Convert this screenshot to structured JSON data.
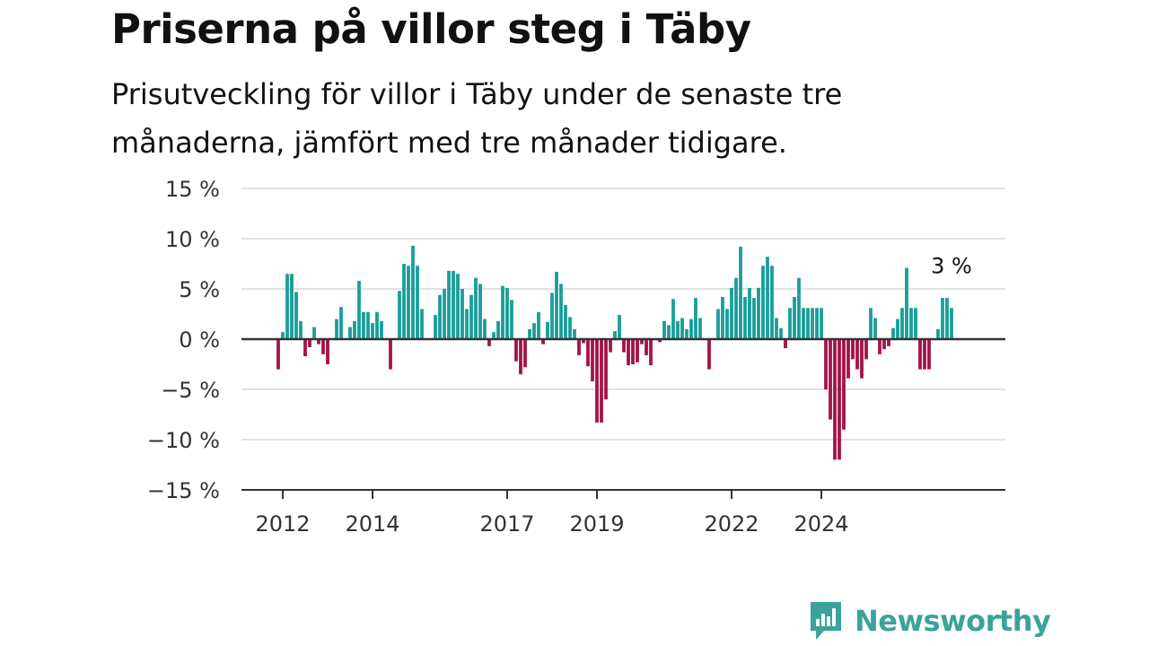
{
  "chart_data": {
    "type": "bar",
    "title": "Priserna på villor steg i Täby",
    "subtitle": "Prisutveckling för villor i Täby under de senaste tre månaderna, jämfört med tre månader tidigare.",
    "xlabel": "",
    "ylabel": "",
    "ylim": [
      -15,
      15
    ],
    "yticks": [
      15,
      10,
      5,
      0,
      -5,
      -10,
      -15
    ],
    "ytick_labels": [
      "15 %",
      "10 %",
      "5 %",
      "0 %",
      "−5 %",
      "−10 %",
      "−15 %"
    ],
    "xticks": [
      {
        "label": "2012",
        "index": 1
      },
      {
        "label": "2014",
        "index": 21
      },
      {
        "label": "2017",
        "index": 51
      },
      {
        "label": "2019",
        "index": 71
      },
      {
        "label": "2022",
        "index": 101
      },
      {
        "label": "2024",
        "index": 121
      }
    ],
    "x_start": "2011-12",
    "values": [
      -3,
      0.7,
      6.5,
      6.5,
      4.7,
      1.8,
      -1.7,
      -0.8,
      1.2,
      -0.5,
      -1.5,
      -2.5,
      0,
      2,
      3.2,
      0,
      1.2,
      1.8,
      5.8,
      2.7,
      2.7,
      1.6,
      2.7,
      1.8,
      0,
      -3,
      0,
      4.8,
      7.5,
      7.3,
      9.3,
      7.3,
      3,
      0,
      0,
      2.4,
      4.4,
      5,
      6.8,
      6.8,
      6.5,
      5,
      3,
      4.4,
      6.1,
      5.5,
      2,
      -0.7,
      0.7,
      1.8,
      5.3,
      5.1,
      3.9,
      -2.2,
      -3.5,
      -2.8,
      1,
      1.6,
      2.7,
      -0.5,
      1.7,
      4.6,
      6.7,
      5.5,
      3.4,
      2.2,
      1,
      -1.6,
      -0.4,
      -2.7,
      -4.2,
      -8.3,
      -8.3,
      -6,
      -1.3,
      0.8,
      2.4,
      -1.3,
      -2.6,
      -2.5,
      -2.3,
      -0.5,
      -1.6,
      -2.6,
      0,
      -0.3,
      1.8,
      1.4,
      4,
      1.8,
      2.1,
      1,
      2,
      4.1,
      2.1,
      0,
      -3,
      0,
      3,
      4.2,
      3,
      5.1,
      6.1,
      9.2,
      4.2,
      5.1,
      4.1,
      5.1,
      7.3,
      8.2,
      7.3,
      2.1,
      1.1,
      -0.9,
      3.1,
      4.2,
      6.1,
      3.1,
      3.1,
      3.1,
      3.1,
      3.1,
      -5,
      -8,
      -12,
      -12,
      -9,
      -3.9,
      -2,
      -3,
      -3.9,
      -2,
      3.1,
      2.1,
      -1.5,
      -1,
      -0.7,
      1.1,
      2,
      3.1,
      7.1,
      3.1,
      3.1,
      -3,
      -3,
      -3,
      0,
      1,
      4.1,
      4.1,
      3.1
    ],
    "last_value_label": "3 %",
    "colors": {
      "positive": "#1a9e99",
      "negative": "#a3134a",
      "grid": "#d9d9d9",
      "zero_line": "#333333"
    }
  },
  "brand": {
    "name": "Newsworthy",
    "logo_icon": "newsworthy-chart-bubble-icon",
    "color": "#3aa39a"
  }
}
